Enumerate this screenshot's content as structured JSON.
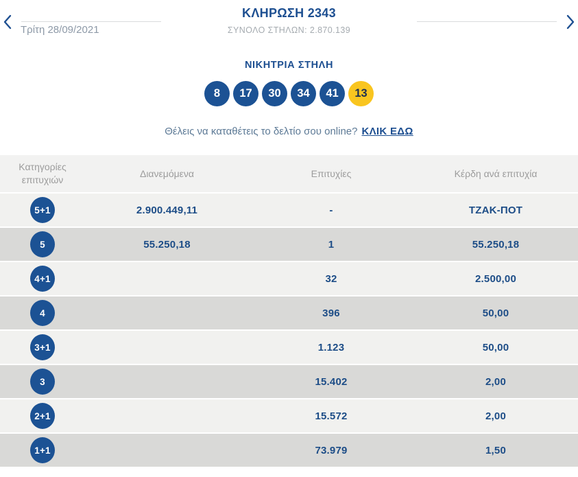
{
  "header": {
    "title": "ΚΛΗΡΩΣΗ 2343",
    "subtitle": "ΣΥΝΟΛΟ ΣΤΗΛΩΝ: 2.870.139",
    "date": "Τρίτη 28/09/2021"
  },
  "winning": {
    "title": "ΝΙΚΗΤΡΙΑ ΣΤΗΛΗ",
    "numbers": [
      "8",
      "17",
      "30",
      "34",
      "41"
    ],
    "joker": "13"
  },
  "cta": {
    "text": "Θέλεις να καταθέτεις το δελτίο σου online?",
    "link_label": "ΚΛΙΚ ΕΔΩ"
  },
  "table": {
    "headers": [
      "Κατηγορίες επιτυχιών",
      "Διανεμόμενα",
      "Επιτυχίες",
      "Κέρδη ανά επιτυχία"
    ],
    "rows": [
      {
        "category": "5+1",
        "distributed": "2.900.449,11",
        "winners": "-",
        "prize": "ΤΖΑΚ-ΠΟΤ"
      },
      {
        "category": "5",
        "distributed": "55.250,18",
        "winners": "1",
        "prize": "55.250,18"
      },
      {
        "category": "4+1",
        "distributed": "",
        "winners": "32",
        "prize": "2.500,00"
      },
      {
        "category": "4",
        "distributed": "",
        "winners": "396",
        "prize": "50,00"
      },
      {
        "category": "3+1",
        "distributed": "",
        "winners": "1.123",
        "prize": "50,00"
      },
      {
        "category": "3",
        "distributed": "",
        "winners": "15.402",
        "prize": "2,00"
      },
      {
        "category": "2+1",
        "distributed": "",
        "winners": "15.572",
        "prize": "2,00"
      },
      {
        "category": "1+1",
        "distributed": "",
        "winners": "73.979",
        "prize": "1,50"
      }
    ]
  },
  "colors": {
    "primary_blue": "#1d4f91",
    "ball_blue": "#1c5294",
    "joker_yellow": "#f9c51f",
    "row_light": "#f1f1ef",
    "row_dark": "#d9d9d7",
    "header_text_gray": "#9c9c9c",
    "muted_blue_gray": "#5d7a96"
  }
}
